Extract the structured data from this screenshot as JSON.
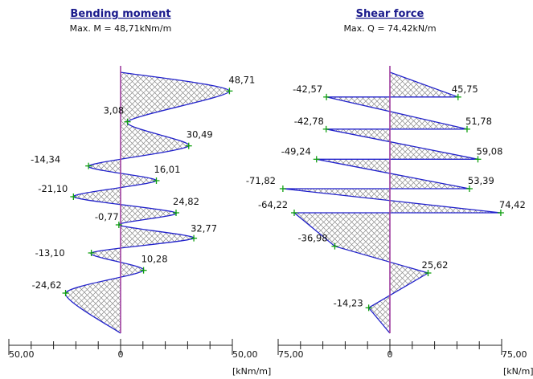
{
  "chart_data": [
    {
      "type": "area",
      "title": "Bending moment",
      "subtitle": "Max. M = 48,71kNm/m",
      "unit": "[kNm/m]",
      "xlim": [
        -50,
        50
      ],
      "ticks": [
        "50,00",
        "0",
        "50,00"
      ],
      "colors": {
        "outline": "#2222cc",
        "hatch": "#8a8a8a",
        "baseline": "#a040a0",
        "marker": "#10a010",
        "title": "#1a1a8c"
      },
      "points": [
        {
          "y": 0,
          "x": 0
        },
        {
          "y": 0.28,
          "x": 48.71,
          "label": "48,71"
        },
        {
          "y": 0.74,
          "x": 3.08,
          "label": "3,08"
        },
        {
          "y": 1.1,
          "x": 30.49,
          "label": "30,49"
        },
        {
          "y": 1.4,
          "x": -14.34,
          "label": "-14,34"
        },
        {
          "y": 1.62,
          "x": 16.01,
          "label": "16,01"
        },
        {
          "y": 1.86,
          "x": -21.1,
          "label": "-21,10"
        },
        {
          "y": 2.1,
          "x": 24.82,
          "label": "24,82"
        },
        {
          "y": 2.28,
          "x": -0.77,
          "label": "-0,77"
        },
        {
          "y": 2.48,
          "x": 32.77,
          "label": "32,77"
        },
        {
          "y": 2.7,
          "x": -13.1,
          "label": "-13,10"
        },
        {
          "y": 2.96,
          "x": 10.28,
          "label": "10,28"
        },
        {
          "y": 3.3,
          "x": -24.62,
          "label": "-24,62"
        },
        {
          "y": 3.9,
          "x": 0
        }
      ]
    },
    {
      "type": "area",
      "title": "Shear force",
      "subtitle": "Max. Q = 74,42kN/m",
      "unit": "[kN/m]",
      "xlim": [
        -75,
        75
      ],
      "ticks": [
        "75,00",
        "0",
        "75,00"
      ],
      "colors": {
        "outline": "#2222cc",
        "hatch": "#8a8a8a",
        "baseline": "#a040a0",
        "marker": "#10a010",
        "title": "#1a1a8c"
      },
      "points": [
        {
          "y": 0,
          "x": 0
        },
        {
          "y": 0.37,
          "x": 45.75,
          "label": "45,75"
        },
        {
          "y": 0.37,
          "x": -42.57,
          "label": "-42,57"
        },
        {
          "y": 0.85,
          "x": 51.78,
          "label": "51,78"
        },
        {
          "y": 0.85,
          "x": -42.78,
          "label": "-42,78"
        },
        {
          "y": 1.3,
          "x": 59.08,
          "label": "59,08"
        },
        {
          "y": 1.3,
          "x": -49.24,
          "label": "-49,24"
        },
        {
          "y": 1.74,
          "x": 53.39,
          "label": "53,39"
        },
        {
          "y": 1.74,
          "x": -71.82,
          "label": "-71,82"
        },
        {
          "y": 2.1,
          "x": 74.42,
          "label": "74,42"
        },
        {
          "y": 2.1,
          "x": -64.22,
          "label": "-64,22"
        },
        {
          "y": 2.6,
          "x": -36.98,
          "label": "-36,98"
        },
        {
          "y": 3.0,
          "x": 25.62,
          "label": "25,62"
        },
        {
          "y": 3.52,
          "x": -14.23,
          "label": "-14,23"
        },
        {
          "y": 3.9,
          "x": 0
        }
      ]
    }
  ]
}
